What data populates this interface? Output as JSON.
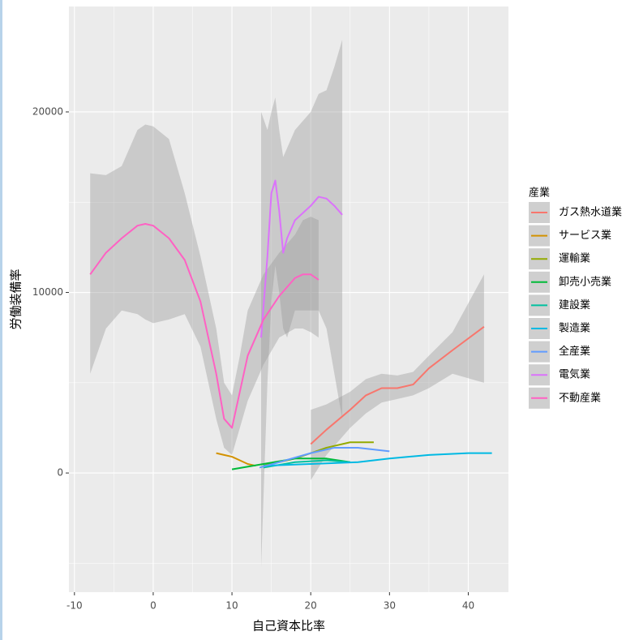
{
  "chart_data": {
    "type": "line",
    "x_label": "自己資本比率",
    "y_label": "労働装備率",
    "legend_title": "産業",
    "xlim": [
      -10.7,
      45.1
    ],
    "ylim": [
      -6600,
      25840
    ],
    "xticks": [
      -10,
      0,
      10,
      20,
      30,
      40
    ],
    "yticks": [
      0,
      10000,
      20000
    ],
    "grid": true,
    "legend": "right",
    "series": [
      {
        "name": "ガス熱水道業",
        "color": "#F8766D",
        "x": [
          20,
          22,
          25,
          27,
          29,
          31,
          33,
          35,
          38,
          42
        ],
        "values": [
          1600,
          2400,
          3500,
          4300,
          4700,
          4700,
          4900,
          5800,
          6800,
          8100
        ],
        "lower": [
          -400,
          1000,
          2500,
          3300,
          3900,
          4100,
          4300,
          4700,
          5500,
          5000
        ],
        "upper": [
          3500,
          3800,
          4500,
          5200,
          5500,
          5400,
          5600,
          6500,
          7800,
          11000
        ]
      },
      {
        "name": "サービス業",
        "color": "#D39200",
        "x": [
          8,
          9,
          10,
          11,
          12,
          13
        ],
        "values": [
          1100,
          1000,
          900,
          700,
          500,
          400
        ]
      },
      {
        "name": "運輸業",
        "color": "#93AA00",
        "x": [
          14,
          18,
          22,
          25,
          28
        ],
        "values": [
          400,
          800,
          1400,
          1700,
          1700
        ]
      },
      {
        "name": "卸売小売業",
        "color": "#00BA38",
        "x": [
          10,
          14,
          18,
          22,
          25
        ],
        "values": [
          200,
          500,
          800,
          800,
          600
        ]
      },
      {
        "name": "建設業",
        "color": "#00C19F",
        "x": [
          14,
          18,
          22,
          25
        ],
        "values": [
          300,
          600,
          700,
          600
        ]
      },
      {
        "name": "製造業",
        "color": "#00B9E3",
        "x": [
          14,
          20,
          26,
          30,
          35,
          40,
          43
        ],
        "values": [
          400,
          500,
          600,
          800,
          1000,
          1100,
          1100
        ]
      },
      {
        "name": "全産業",
        "color": "#619CFF",
        "x": [
          13.5,
          16,
          20,
          23,
          26,
          30
        ],
        "values": [
          300,
          600,
          1100,
          1400,
          1400,
          1200
        ]
      },
      {
        "name": "電気業",
        "color": "#DB72FB",
        "x": [
          13.7,
          14.5,
          15,
          15.5,
          16,
          16.5,
          17,
          18,
          20,
          21,
          22,
          23,
          24
        ],
        "values": [
          7500,
          12000,
          15500,
          16200,
          14500,
          12200,
          13000,
          14000,
          14800,
          15300,
          15200,
          14800,
          14300
        ],
        "lower": [
          -5200,
          5000,
          9500,
          11500,
          10000,
          8000,
          7500,
          9000,
          9000,
          9000,
          8000,
          5500,
          3000
        ],
        "upper": [
          20000,
          19000,
          20000,
          20800,
          19000,
          17500,
          18000,
          19000,
          20000,
          21000,
          21200,
          22500,
          24000
        ]
      },
      {
        "name": "不動産業",
        "color": "#FF61C3",
        "x": [
          -8,
          -6,
          -4,
          -2,
          -1,
          0,
          2,
          4,
          6,
          8,
          9,
          10,
          11,
          12,
          14,
          16,
          18,
          19,
          20,
          21
        ],
        "values": [
          11000,
          12200,
          13000,
          13700,
          13800,
          13700,
          13000,
          11800,
          9500,
          5500,
          3000,
          2500,
          4500,
          6500,
          8500,
          9800,
          10800,
          11000,
          11000,
          10700
        ],
        "lower": [
          5500,
          8000,
          9000,
          8800,
          8500,
          8300,
          8500,
          8800,
          7000,
          3000,
          1400,
          1000,
          2500,
          4000,
          6000,
          7500,
          8000,
          8000,
          7800,
          7500
        ],
        "upper": [
          16600,
          16500,
          17000,
          19000,
          19300,
          19200,
          18500,
          15500,
          12000,
          8000,
          5000,
          4300,
          6500,
          9000,
          11000,
          12200,
          13200,
          14000,
          14200,
          14000
        ]
      }
    ]
  }
}
